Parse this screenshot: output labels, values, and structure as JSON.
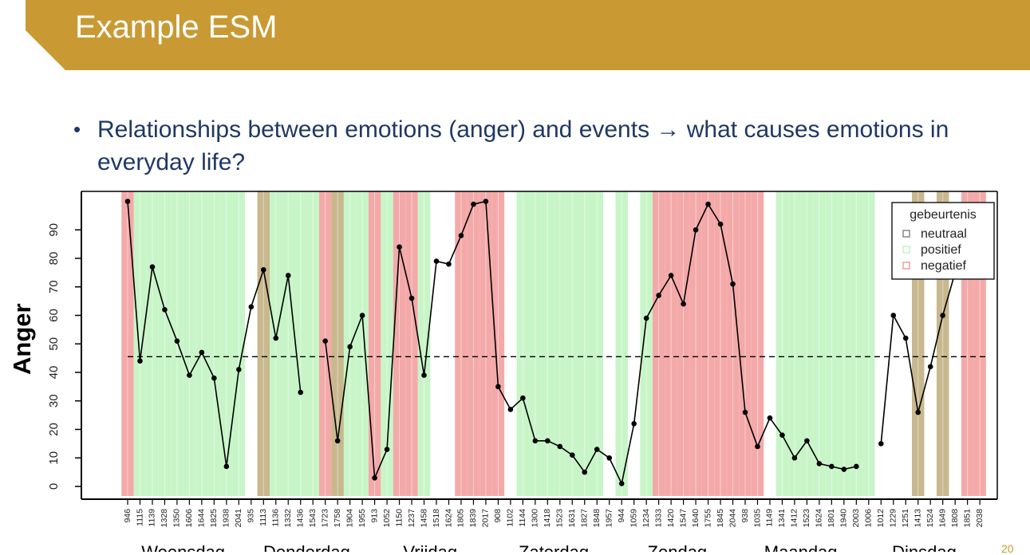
{
  "slide": {
    "title": "Example ESM",
    "bullet": "Relationships between emotions (anger) and events →  what causes emotions in everyday life?",
    "page_number": "20"
  },
  "colors": {
    "header": "#c99a34",
    "bullet_text": "#1f3864",
    "neutraal": "#c8b88e",
    "positief": "#c8f5c8",
    "negatief": "#f4a9a9"
  },
  "chart_data": {
    "type": "line",
    "ylabel": "Anger",
    "ylim": [
      0,
      100
    ],
    "yticks": [
      0,
      10,
      20,
      30,
      40,
      50,
      60,
      70,
      80,
      90
    ],
    "mean_line": 45.5,
    "legend": {
      "title": "gebeurtenis",
      "position": "top-right",
      "entries": [
        {
          "label": "neutraal",
          "category": "neutraal"
        },
        {
          "label": "positief",
          "category": "positief"
        },
        {
          "label": "negatief",
          "category": "negatief"
        }
      ]
    },
    "x": [
      "9:46",
      "11:15",
      "11:39",
      "13:28",
      "13:50",
      "16:06",
      "16:44",
      "18:25",
      "19:38",
      "20:41",
      "9:35",
      "11:13",
      "11:36",
      "13:32",
      "14:36",
      "15:43",
      "17:23",
      "17:58",
      "19:04",
      "19:55",
      "9:13",
      "10:52",
      "11:50",
      "12:37",
      "14:58",
      "15:18",
      "16:24",
      "18:05",
      "18:39",
      "20:17",
      "9:08",
      "11:02",
      "11:44",
      "13:00",
      "14:18",
      "15:23",
      "16:31",
      "18:27",
      "18:48",
      "19:57",
      "9:44",
      "10:59",
      "12:34",
      "13:33",
      "14:20",
      "15:47",
      "16:40",
      "17:55",
      "18:45",
      "20:44",
      "9:38",
      "10:35",
      "11:49",
      "13:41",
      "14:12",
      "15:23",
      "16:24",
      "18:01",
      "19:40",
      "20:03",
      "10:06",
      "10:12",
      "12:29",
      "12:51",
      "14:13",
      "15:24",
      "16:49",
      "18:08",
      "18:51",
      "20:38"
    ],
    "tick_labels": [
      "946",
      "1115",
      "1139",
      "1328",
      "1350",
      "1606",
      "1644",
      "1825",
      "1938",
      "2041",
      "935",
      "1113",
      "1136",
      "1332",
      "1436",
      "1543",
      "1723",
      "1758",
      "1904",
      "1955",
      "913",
      "1052",
      "1150",
      "1237",
      "1458",
      "1518",
      "1624",
      "1805",
      "1839",
      "2017",
      "908",
      "1102",
      "1144",
      "1300",
      "1418",
      "1523",
      "1631",
      "1827",
      "1848",
      "1957",
      "944",
      "1059",
      "1234",
      "1333",
      "1420",
      "1547",
      "1640",
      "1755",
      "1845",
      "2044",
      "938",
      "1035",
      "1149",
      "1341",
      "1412",
      "1523",
      "1624",
      "1801",
      "1940",
      "2003",
      "1006",
      "1012",
      "1229",
      "1251",
      "1413",
      "1524",
      "1649",
      "1808",
      "1851",
      "2038"
    ],
    "values": [
      100,
      44,
      77,
      62,
      51,
      39,
      47,
      38,
      7,
      41,
      63,
      76,
      52,
      74,
      33,
      null,
      51,
      16,
      49,
      60,
      3,
      13,
      84,
      66,
      39,
      79,
      78,
      88,
      99,
      100,
      35,
      27,
      31,
      16,
      16,
      14,
      11,
      5,
      13,
      10,
      1,
      22,
      59,
      67,
      74,
      64,
      90,
      99,
      92,
      71,
      26,
      14,
      24,
      18,
      10,
      16,
      8,
      7,
      6,
      7,
      null,
      15,
      60,
      52,
      26,
      42,
      60,
      75,
      null,
      null
    ],
    "events": [
      "negatief",
      "positief",
      "positief",
      "positief",
      "positief",
      "positief",
      "positief",
      "positief",
      "positief",
      "positief",
      "none",
      "neutraal",
      "positief",
      "positief",
      "positief",
      "positief",
      "negatief",
      "neutraal",
      "positief",
      "positief",
      "negatief",
      "positief",
      "negatief",
      "negatief",
      "positief",
      "none",
      "none",
      "negatief",
      "negatief",
      "negatief",
      "negatief",
      "none",
      "positief",
      "positief",
      "positief",
      "positief",
      "positief",
      "positief",
      "positief",
      "none",
      "positief",
      "none",
      "positief",
      "negatief",
      "negatief",
      "negatief",
      "negatief",
      "negatief",
      "negatief",
      "negatief",
      "negatief",
      "negatief",
      "none",
      "positief",
      "positief",
      "positief",
      "positief",
      "positief",
      "positief",
      "positief",
      "positief",
      "none",
      "none",
      "none",
      "neutraal",
      "none",
      "neutraal",
      "none",
      "negatief",
      "negatief"
    ],
    "day_labels": [
      "Woensdag",
      "Donderdag",
      "Vrijdag",
      "Zaterdag",
      "Zondag",
      "Maandag",
      "Dinsdag"
    ],
    "day_starts": [
      0,
      10,
      20,
      30,
      40,
      50,
      60
    ]
  }
}
